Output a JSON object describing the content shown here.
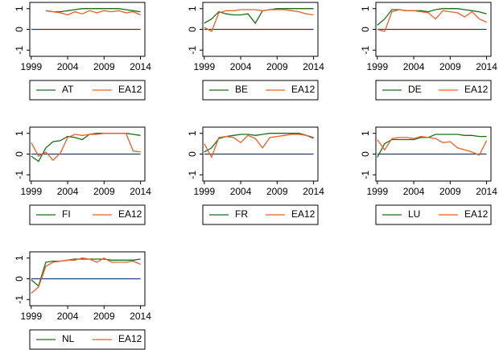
{
  "chart_data": [
    {
      "type": "line",
      "x": [
        1999,
        2000,
        2001,
        2002,
        2003,
        2004,
        2005,
        2006,
        2007,
        2008,
        2009,
        2010,
        2011,
        2012,
        2013,
        2014
      ],
      "xlim": [
        1998.8,
        2014.6
      ],
      "xticks": [
        1999,
        2004,
        2009,
        2014
      ],
      "ylim": [
        -1.3,
        1.3
      ],
      "yticks": [
        -1,
        0,
        1
      ],
      "reference_line": 0,
      "reference_color": "#1f3f6e",
      "series": [
        {
          "name": "AT",
          "color": "#1a6e1a",
          "values": [
            null,
            null,
            0.9,
            0.85,
            0.85,
            0.9,
            0.95,
            1,
            1,
            1,
            1,
            1,
            1,
            0.95,
            0.9,
            0.85
          ]
        },
        {
          "name": "EA12",
          "color": "#e8602c",
          "values": [
            null,
            null,
            0.9,
            0.85,
            0.8,
            0.7,
            0.85,
            0.75,
            0.9,
            0.8,
            0.9,
            0.85,
            0.9,
            0.8,
            0.85,
            0.7
          ]
        }
      ]
    },
    {
      "type": "line",
      "x": [
        1999,
        2000,
        2001,
        2002,
        2003,
        2004,
        2005,
        2006,
        2007,
        2008,
        2009,
        2010,
        2011,
        2012,
        2013,
        2014
      ],
      "xlim": [
        1998.8,
        2014.6
      ],
      "xticks": [
        1999,
        2004,
        2009,
        2014
      ],
      "ylim": [
        -1.3,
        1.3
      ],
      "yticks": [
        -1,
        0,
        1
      ],
      "reference_line": 0,
      "reference_color": "#1f3f6e",
      "series": [
        {
          "name": "BE",
          "color": "#1a6e1a",
          "values": [
            0.3,
            0.5,
            0.85,
            0.75,
            0.7,
            0.7,
            0.75,
            0.3,
            0.9,
            0.95,
            1,
            1,
            1,
            1,
            1,
            1
          ]
        },
        {
          "name": "EA12",
          "color": "#e8602c",
          "values": [
            0.1,
            -0.1,
            0.8,
            0.9,
            0.9,
            0.95,
            0.95,
            0.95,
            0.9,
            0.95,
            0.95,
            0.95,
            0.9,
            0.85,
            0.75,
            0.7
          ]
        }
      ]
    },
    {
      "type": "line",
      "x": [
        1999,
        2000,
        2001,
        2002,
        2003,
        2004,
        2005,
        2006,
        2007,
        2008,
        2009,
        2010,
        2011,
        2012,
        2013,
        2014
      ],
      "xlim": [
        1998.8,
        2014.6
      ],
      "xticks": [
        1999,
        2004,
        2009,
        2014
      ],
      "ylim": [
        -1.3,
        1.3
      ],
      "yticks": [
        -1,
        0,
        1
      ],
      "reference_line": 0,
      "reference_color": "#1f3f6e",
      "series": [
        {
          "name": "DE",
          "color": "#1a6e1a",
          "values": [
            0.2,
            0.5,
            0.95,
            0.95,
            0.9,
            0.9,
            0.9,
            0.85,
            0.95,
            1,
            1,
            1,
            0.95,
            0.9,
            0.85,
            0.75
          ]
        },
        {
          "name": "EA12",
          "color": "#e8602c",
          "values": [
            0,
            -0.1,
            0.85,
            0.95,
            0.9,
            0.9,
            0.85,
            0.8,
            0.5,
            0.9,
            0.85,
            0.8,
            0.6,
            0.85,
            0.5,
            0.35
          ]
        }
      ]
    },
    {
      "type": "line",
      "x": [
        1999,
        2000,
        2001,
        2002,
        2003,
        2004,
        2005,
        2006,
        2007,
        2008,
        2009,
        2010,
        2011,
        2012,
        2013,
        2014
      ],
      "xlim": [
        1998.8,
        2014.6
      ],
      "xticks": [
        1999,
        2004,
        2009,
        2014
      ],
      "ylim": [
        -1.3,
        1.3
      ],
      "yticks": [
        -1,
        0,
        1
      ],
      "reference_line": 0,
      "reference_color": "#1f3f6e",
      "series": [
        {
          "name": "FI",
          "color": "#1a6e1a",
          "values": [
            -0.1,
            -0.35,
            0.3,
            0.6,
            0.65,
            0.85,
            0.8,
            0.7,
            0.95,
            1,
            1,
            1,
            1,
            1,
            0.95,
            0.9
          ]
        },
        {
          "name": "EA12",
          "color": "#e8602c",
          "values": [
            0.55,
            -0.1,
            0.1,
            -0.3,
            0.05,
            0.8,
            0.95,
            0.9,
            0.95,
            0.95,
            1,
            1,
            1,
            1,
            0.15,
            0.1
          ]
        }
      ]
    },
    {
      "type": "line",
      "x": [
        1999,
        2000,
        2001,
        2002,
        2003,
        2004,
        2005,
        2006,
        2007,
        2008,
        2009,
        2010,
        2011,
        2012,
        2013,
        2014
      ],
      "xlim": [
        1998.8,
        2014.6
      ],
      "xticks": [
        1999,
        2004,
        2009,
        2014
      ],
      "ylim": [
        -1.3,
        1.3
      ],
      "yticks": [
        -1,
        0,
        1
      ],
      "reference_line": 0,
      "reference_color": "#1f3f6e",
      "series": [
        {
          "name": "FR",
          "color": "#1a6e1a",
          "values": [
            0.1,
            0.3,
            0.75,
            0.85,
            0.9,
            0.95,
            0.95,
            0.9,
            0.95,
            1,
            1,
            1,
            1,
            1,
            0.9,
            0.8
          ]
        },
        {
          "name": "EA12",
          "color": "#e8602c",
          "values": [
            0.5,
            -0.15,
            0.8,
            0.85,
            0.8,
            0.55,
            0.9,
            0.75,
            0.3,
            0.8,
            0.85,
            0.9,
            0.95,
            0.95,
            0.9,
            0.75
          ]
        }
      ]
    },
    {
      "type": "line",
      "x": [
        1999,
        2000,
        2001,
        2002,
        2003,
        2004,
        2005,
        2006,
        2007,
        2008,
        2009,
        2010,
        2011,
        2012,
        2013,
        2014
      ],
      "xlim": [
        1998.8,
        2014.6
      ],
      "xticks": [
        1999,
        2004,
        2009,
        2014
      ],
      "ylim": [
        -1.3,
        1.3
      ],
      "yticks": [
        -1,
        0,
        1
      ],
      "reference_line": 0,
      "reference_color": "#1f3f6e",
      "series": [
        {
          "name": "LU",
          "color": "#1a6e1a",
          "values": [
            -0.15,
            0.5,
            0.7,
            0.7,
            0.7,
            0.7,
            0.8,
            0.8,
            0.95,
            0.95,
            0.95,
            0.95,
            0.9,
            0.9,
            0.85,
            0.85
          ]
        },
        {
          "name": "EA12",
          "color": "#e8602c",
          "values": [
            0.7,
            0.2,
            0.75,
            0.8,
            0.8,
            0.75,
            0.85,
            0.8,
            0.75,
            0.55,
            0.6,
            0.3,
            0.2,
            0.1,
            -0.05,
            0.65
          ]
        }
      ]
    },
    {
      "type": "line",
      "x": [
        1999,
        2000,
        2001,
        2002,
        2003,
        2004,
        2005,
        2006,
        2007,
        2008,
        2009,
        2010,
        2011,
        2012,
        2013,
        2014
      ],
      "xlim": [
        1998.8,
        2014.6
      ],
      "xticks": [
        1999,
        2004,
        2009,
        2014
      ],
      "ylim": [
        -1.3,
        1.3
      ],
      "yticks": [
        -1,
        0,
        1
      ],
      "reference_line": 0,
      "reference_color": "#1f3f6e",
      "series": [
        {
          "name": "NL",
          "color": "#1a6e1a",
          "values": [
            -0.05,
            -0.35,
            0.8,
            0.85,
            0.85,
            0.9,
            0.95,
            0.95,
            0.95,
            0.95,
            0.95,
            0.9,
            0.9,
            0.9,
            0.9,
            0.95
          ]
        },
        {
          "name": "EA12",
          "color": "#e8602c",
          "values": [
            -0.7,
            -0.4,
            0.6,
            0.8,
            0.85,
            0.9,
            0.9,
            1,
            0.95,
            0.8,
            1,
            0.8,
            0.8,
            0.8,
            0.85,
            0.7
          ]
        }
      ]
    }
  ]
}
